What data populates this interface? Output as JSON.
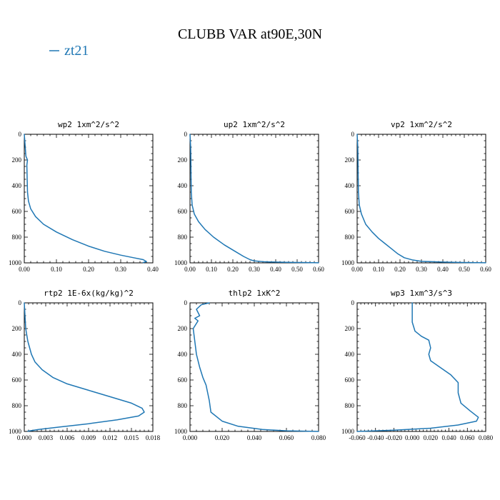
{
  "title": "CLUBB VAR at90E,30N",
  "legend": {
    "entries": [
      {
        "label": "zt21",
        "color": "#1f77b4"
      }
    ],
    "placement": "top-left"
  },
  "chart_data": [
    {
      "type": "line",
      "title": "wp2  1xm^2/s^2",
      "series": [
        {
          "name": "zt21",
          "color": "#1f77b4",
          "x": [
            0.0,
            0.003,
            0.005,
            0.01,
            0.008,
            0.009,
            0.01,
            0.013,
            0.02,
            0.035,
            0.06,
            0.1,
            0.15,
            0.2,
            0.25,
            0.3,
            0.34,
            0.37,
            0.38,
            0.37
          ],
          "y": [
            0,
            100,
            170,
            200,
            240,
            350,
            450,
            520,
            580,
            640,
            700,
            760,
            820,
            870,
            910,
            940,
            960,
            975,
            990,
            998
          ]
        }
      ],
      "xlim": [
        0.0,
        0.4
      ],
      "ylim": [
        1000,
        0
      ],
      "xticks": [
        "0.00",
        "0.10",
        "0.20",
        "0.30",
        "0.40"
      ],
      "yticks": [
        "0",
        "200",
        "400",
        "600",
        "800",
        "1000"
      ],
      "xticks_values": [
        0.0,
        0.1,
        0.2,
        0.3,
        0.4
      ],
      "yticks_values": [
        0,
        200,
        400,
        600,
        800,
        1000
      ]
    },
    {
      "type": "line",
      "title": "up2  1xm^2/s^2",
      "series": [
        {
          "name": "zt21",
          "color": "#1f77b4",
          "x": [
            0.0,
            0.003,
            0.004,
            0.005,
            0.006,
            0.01,
            0.02,
            0.04,
            0.07,
            0.11,
            0.16,
            0.21,
            0.25,
            0.28,
            0.3,
            0.35,
            0.45,
            0.55,
            0.6
          ],
          "y": [
            0,
            100,
            200,
            350,
            450,
            550,
            620,
            680,
            740,
            800,
            860,
            910,
            950,
            975,
            985,
            992,
            996,
            998,
            999
          ]
        }
      ],
      "xlim": [
        0.0,
        0.6
      ],
      "ylim": [
        1000,
        0
      ],
      "xticks": [
        "0.00",
        "0.10",
        "0.20",
        "0.30",
        "0.40",
        "0.50",
        "0.60"
      ],
      "yticks": [
        "0",
        "200",
        "400",
        "600",
        "800",
        "1000"
      ],
      "xticks_values": [
        0.0,
        0.1,
        0.2,
        0.3,
        0.4,
        0.5,
        0.6
      ],
      "yticks_values": [
        0,
        200,
        400,
        600,
        800,
        1000
      ]
    },
    {
      "type": "line",
      "title": "vp2  1xm^2/s^2",
      "series": [
        {
          "name": "zt21",
          "color": "#1f77b4",
          "x": [
            0.0,
            0.003,
            0.004,
            0.005,
            0.006,
            0.01,
            0.02,
            0.04,
            0.07,
            0.1,
            0.13,
            0.16,
            0.19,
            0.22,
            0.26,
            0.3,
            0.4,
            0.5,
            0.6
          ],
          "y": [
            0,
            100,
            200,
            350,
            450,
            550,
            620,
            700,
            760,
            810,
            850,
            890,
            930,
            960,
            978,
            988,
            994,
            997,
            999
          ]
        }
      ],
      "xlim": [
        0.0,
        0.6
      ],
      "ylim": [
        1000,
        0
      ],
      "xticks": [
        "0.00",
        "0.10",
        "0.20",
        "0.30",
        "0.40",
        "0.50",
        "0.60"
      ],
      "yticks": [
        "0",
        "200",
        "400",
        "600",
        "800",
        "1000"
      ],
      "xticks_values": [
        0.0,
        0.1,
        0.2,
        0.3,
        0.4,
        0.5,
        0.6
      ],
      "yticks_values": [
        0,
        200,
        400,
        600,
        800,
        1000
      ]
    },
    {
      "type": "line",
      "title": "rtp2  1E-6x(kg/kg)^2",
      "series": [
        {
          "name": "zt21",
          "color": "#1f77b4",
          "x": [
            0.0,
            0.0002,
            0.0005,
            0.001,
            0.0015,
            0.0025,
            0.004,
            0.006,
            0.009,
            0.012,
            0.015,
            0.0165,
            0.0168,
            0.016,
            0.013,
            0.009,
            0.005,
            0.002,
            0.0005
          ],
          "y": [
            0,
            200,
            300,
            400,
            460,
            520,
            580,
            630,
            680,
            730,
            780,
            820,
            850,
            880,
            910,
            940,
            965,
            985,
            998
          ]
        }
      ],
      "xlim": [
        0.0,
        0.018
      ],
      "ylim": [
        1000,
        0
      ],
      "xticks": [
        "0.000",
        "0.003",
        "0.006",
        "0.009",
        "0.012",
        "0.015",
        "0.018"
      ],
      "yticks": [
        "0",
        "200",
        "400",
        "600",
        "800",
        "1000"
      ],
      "xticks_values": [
        0.0,
        0.003,
        0.006,
        0.009,
        0.012,
        0.015,
        0.018
      ],
      "yticks_values": [
        0,
        200,
        400,
        600,
        800,
        1000
      ]
    },
    {
      "type": "line",
      "title": "thlp2  1xK^2",
      "series": [
        {
          "name": "zt21",
          "color": "#1f77b4",
          "x": [
            0.012,
            0.007,
            0.004,
            0.006,
            0.003,
            0.005,
            0.002,
            0.003,
            0.004,
            0.006,
            0.008,
            0.01,
            0.011,
            0.012,
            0.013,
            0.02,
            0.03,
            0.045,
            0.06,
            0.08
          ],
          "y": [
            0,
            15,
            50,
            100,
            120,
            140,
            200,
            300,
            400,
            500,
            580,
            640,
            700,
            760,
            850,
            920,
            960,
            985,
            995,
            1000
          ]
        }
      ],
      "xlim": [
        0.0,
        0.08
      ],
      "ylim": [
        1000,
        0
      ],
      "xticks": [
        "0.000",
        "0.020",
        "0.040",
        "0.060",
        "0.080"
      ],
      "yticks": [
        "0",
        "200",
        "400",
        "600",
        "800",
        "1000"
      ],
      "xticks_values": [
        0.0,
        0.02,
        0.04,
        0.06,
        0.08
      ],
      "yticks_values": [
        0,
        200,
        400,
        600,
        800,
        1000
      ]
    },
    {
      "type": "line",
      "title": "wp3  1xm^3/s^3",
      "series": [
        {
          "name": "zt21",
          "color": "#1f77b4",
          "x": [
            0.0,
            0.0,
            0.003,
            0.01,
            0.018,
            0.02,
            0.018,
            0.02,
            0.03,
            0.042,
            0.05,
            0.05,
            0.053,
            0.063,
            0.072,
            0.07,
            0.05,
            0.02,
            -0.02,
            -0.06
          ],
          "y": [
            0,
            150,
            220,
            260,
            290,
            350,
            400,
            450,
            500,
            560,
            620,
            700,
            780,
            840,
            890,
            920,
            950,
            975,
            990,
            1000
          ]
        }
      ],
      "xlim": [
        -0.06,
        0.08
      ],
      "ylim": [
        1000,
        0
      ],
      "xticks": [
        "-0.060",
        "-0.040",
        "-0.020",
        "0.000",
        "0.020",
        "0.040",
        "0.060",
        "0.080"
      ],
      "yticks": [
        "0",
        "200",
        "400",
        "600",
        "800",
        "1000"
      ],
      "xticks_values": [
        -0.06,
        -0.04,
        -0.02,
        0.0,
        0.02,
        0.04,
        0.06,
        0.08
      ],
      "yticks_values": [
        0,
        200,
        400,
        600,
        800,
        1000
      ]
    }
  ]
}
